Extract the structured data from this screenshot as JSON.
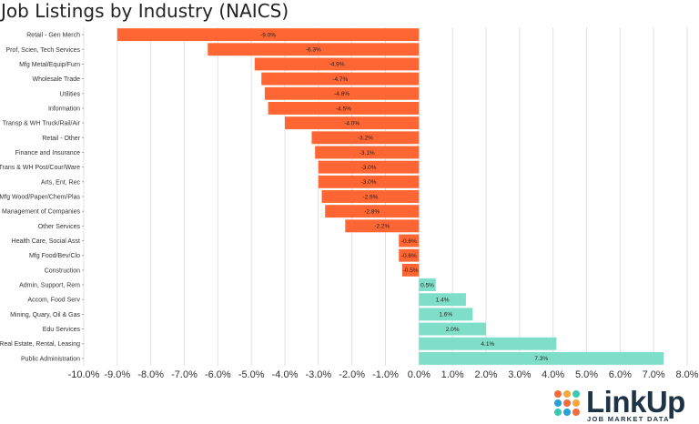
{
  "chart_data": {
    "type": "bar",
    "orientation": "horizontal",
    "title": "Job Listings by Industry (NAICS)",
    "categories": [
      "Retail - Gen Merch",
      "Prof, Scien, Tech Services",
      "Mfg Metal/Equip/Furn",
      "Wholesale Trade",
      "Utilities",
      "Information",
      "Transp & WH Truck/Rail/Air",
      "Retail - Other",
      "Finance and Insurance",
      "Trans & WH Post/Cour/Ware",
      "Arts, Ent, Rec",
      "Mfg Wood/Paper/Chem/Plas",
      "Management of Companies",
      "Other Services",
      "Health Care, Social Asst",
      "Mfg Food/Bev/Clo",
      "Construction",
      "Admin, Support, Rem",
      "Accom, Food Serv",
      "Mining, Quary, Oil & Gas",
      "Edu Services",
      "Real Estate, Rental, Leasing",
      "Public Administration"
    ],
    "values": [
      -9.0,
      -6.3,
      -4.9,
      -4.7,
      -4.6,
      -4.5,
      -4.0,
      -3.2,
      -3.1,
      -3.0,
      -3.0,
      -2.9,
      -2.8,
      -2.2,
      -0.6,
      -0.6,
      -0.5,
      0.5,
      1.4,
      1.6,
      2.0,
      4.1,
      7.3
    ],
    "data_labels": [
      "-9.0%",
      "-6.3%",
      "-4.9%",
      "-4.7%",
      "-4.6%",
      "-4.5%",
      "-4.0%",
      "-3.2%",
      "-3.1%",
      "-3.0%",
      "-3.0%",
      "-2.9%",
      "-2.8%",
      "-2.2%",
      "-0.6%",
      "-0.6%",
      "-0.5%",
      "0.5%",
      "1.4%",
      "1.6%",
      "2.0%",
      "4.1%",
      "7.3%"
    ],
    "xlim": [
      -10,
      8
    ],
    "xticks": [
      -10,
      -9,
      -8,
      -7,
      -6,
      -5,
      -4,
      -3,
      -2,
      -1,
      0,
      1,
      2,
      3,
      4,
      5,
      6,
      7,
      8
    ],
    "xtick_labels": [
      "-10.0%",
      "-9.0%",
      "-8.0%",
      "-7.0%",
      "-6.0%",
      "-5.0%",
      "-4.0%",
      "-3.0%",
      "-2.0%",
      "-1.0%",
      "0.0%",
      "1.0%",
      "2.0%",
      "3.0%",
      "4.0%",
      "5.0%",
      "6.0%",
      "7.0%",
      "8.0%"
    ],
    "xlabel": "",
    "ylabel": "",
    "grid": "vertical",
    "colors": {
      "negative": "#ff6633",
      "positive": "#7fdec8",
      "grid": "#e2e2e2"
    }
  },
  "logo": {
    "name": "LinkUp",
    "tagline": "JOB MARKET DATA",
    "dot_colors": [
      "#f26b3a",
      "#f6a83c",
      "#3cc7b0",
      "#2a9fd6",
      "#f26b3a",
      "#f6a83c",
      "#3cc7b0",
      "#2a9fd6",
      "#f26b3a"
    ]
  }
}
